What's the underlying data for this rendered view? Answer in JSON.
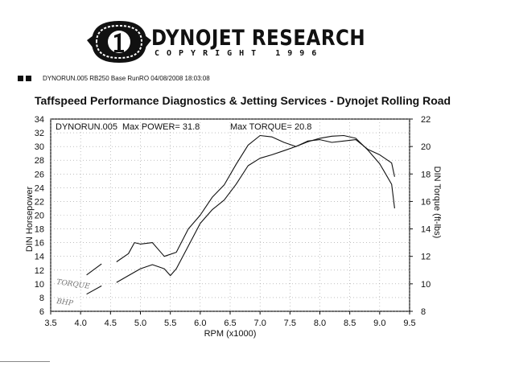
{
  "header": {
    "logo_main": "DYNOJET RESEARCH",
    "logo_sub": "COPYRIGHT 1996",
    "run_info": "DYNORUN.005  RB250 Base RunRO  04/08/2008 18:03:08"
  },
  "chart_data": {
    "type": "line",
    "title": "Taffspeed Performance Diagnostics & Jetting Services - Dynojet Rolling Road",
    "legend_run": "DYNORUN.005",
    "max_power_label": "Max POWER= 31.8",
    "max_torque_label": "Max TORQUE= 20.8",
    "xlabel": "RPM (x1000)",
    "ylabel_left": "DIN Horsepower",
    "ylabel_right": "DIN Torque (ft-lbs)",
    "xlim": [
      3.5,
      9.5
    ],
    "ylim_left": [
      6,
      34
    ],
    "ylim_right": [
      8,
      22
    ],
    "x_ticks": [
      "3.5",
      "4.0",
      "4.5",
      "5.0",
      "5.5",
      "6.0",
      "6.5",
      "7.0",
      "7.5",
      "8.0",
      "8.5",
      "9.0",
      "9.5"
    ],
    "y_ticks_left": [
      "6",
      "8",
      "10",
      "12",
      "14",
      "16",
      "18",
      "20",
      "22",
      "24",
      "26",
      "28",
      "30",
      "32",
      "34"
    ],
    "y_ticks_right": [
      "8",
      "10",
      "12",
      "14",
      "16",
      "18",
      "20",
      "22"
    ],
    "annotations": [
      "TORQUE",
      "BHP"
    ],
    "series": [
      {
        "name": "Power",
        "axis": "left",
        "x": [
          4.6,
          4.8,
          5.0,
          5.2,
          5.4,
          5.5,
          5.6,
          5.8,
          6.0,
          6.2,
          6.4,
          6.6,
          6.8,
          7.0,
          7.2,
          7.4,
          7.6,
          7.8,
          8.0,
          8.2,
          8.4,
          8.6,
          8.8,
          9.0,
          9.1,
          9.2,
          9.25
        ],
        "y": [
          10.2,
          11.2,
          12.2,
          12.8,
          12.2,
          11.2,
          12.2,
          15.5,
          18.8,
          20.8,
          22.2,
          24.5,
          27.2,
          28.3,
          28.8,
          29.4,
          30.0,
          30.7,
          31.2,
          31.5,
          31.6,
          31.2,
          29.5,
          27.5,
          26.0,
          24.5,
          21.0
        ]
      },
      {
        "name": "Torque",
        "axis": "right",
        "x": [
          4.6,
          4.8,
          4.9,
          5.0,
          5.2,
          5.3,
          5.4,
          5.6,
          5.8,
          6.0,
          6.2,
          6.4,
          6.6,
          6.8,
          7.0,
          7.2,
          7.4,
          7.6,
          7.8,
          8.0,
          8.2,
          8.4,
          8.6,
          8.8,
          9.0,
          9.2,
          9.25
        ],
        "y": [
          11.6,
          12.2,
          13.0,
          12.9,
          13.0,
          12.5,
          12.0,
          12.3,
          14.0,
          15.0,
          16.3,
          17.2,
          18.7,
          20.1,
          20.8,
          20.7,
          20.3,
          20.0,
          20.4,
          20.5,
          20.3,
          20.4,
          20.5,
          19.8,
          19.4,
          18.8,
          17.8
        ]
      },
      {
        "name": "TORQUE annotation",
        "axis": "left",
        "x": [
          4.1,
          4.35
        ],
        "y": [
          11.3,
          12.9
        ]
      },
      {
        "name": "BHP annotation",
        "axis": "left",
        "x": [
          4.1,
          4.35
        ],
        "y": [
          8.5,
          9.7
        ]
      }
    ]
  }
}
